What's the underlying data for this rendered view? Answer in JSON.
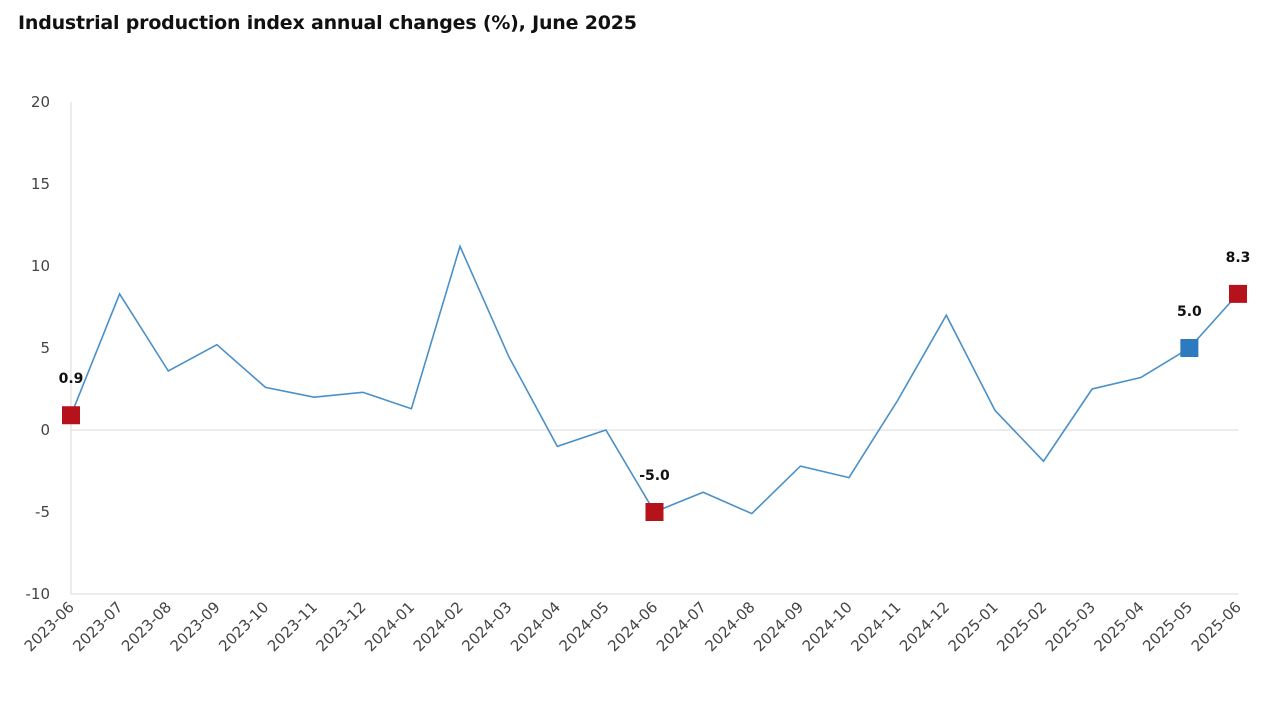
{
  "chart_data": {
    "type": "line",
    "title": "Industrial production index annual changes (%), June 2025",
    "xlabel": "",
    "ylabel": "",
    "ylim": [
      -10,
      20
    ],
    "yticks": [
      20,
      15,
      10,
      5,
      0,
      -5,
      -10
    ],
    "grid": false,
    "categories": [
      "2023-06",
      "2023-07",
      "2023-08",
      "2023-09",
      "2023-10",
      "2023-11",
      "2023-12",
      "2024-01",
      "2024-02",
      "2024-03",
      "2024-04",
      "2024-05",
      "2024-06",
      "2024-07",
      "2024-08",
      "2024-09",
      "2024-10",
      "2024-11",
      "2024-12",
      "2025-01",
      "2025-02",
      "2025-03",
      "2025-04",
      "2025-05",
      "2025-06"
    ],
    "series": [
      {
        "values": [
          0.9,
          8.3,
          3.6,
          5.2,
          2.6,
          2.0,
          2.3,
          1.3,
          11.2,
          4.5,
          -1.0,
          0.0,
          -5.0,
          -3.8,
          -5.1,
          -2.2,
          -2.9,
          1.8,
          7.0,
          1.2,
          -1.9,
          2.5,
          3.2,
          5.0,
          8.3
        ],
        "color": "#4a90c8"
      }
    ],
    "highlighted_points": [
      {
        "category": "2023-06",
        "value": 0.9,
        "label": "0.9",
        "color": "#b5121b"
      },
      {
        "category": "2024-06",
        "value": -5.0,
        "label": "-5.0",
        "color": "#b5121b"
      },
      {
        "category": "2025-05",
        "value": 5.0,
        "label": "5.0",
        "color": "#2e7ac0"
      },
      {
        "category": "2025-06",
        "value": 8.3,
        "label": "8.3",
        "color": "#b5121b"
      }
    ]
  }
}
